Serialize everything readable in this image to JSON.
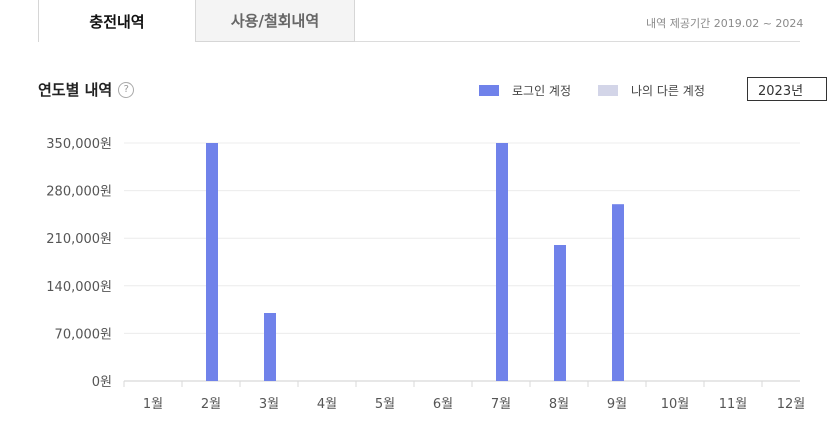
{
  "tabs": [
    {
      "label": "충전내역",
      "active": true
    },
    {
      "label": "사용/철회내역",
      "active": false
    }
  ],
  "period_text": "내역 제공기간 2019.02 ~ 2024",
  "section": {
    "title": "연도별 내역",
    "help_icon": "question-circle-icon"
  },
  "legend": [
    {
      "label": "로그인 계정",
      "color": "#7082ea"
    },
    {
      "label": "나의 다른 계정",
      "color": "#d3d5e8"
    }
  ],
  "year_select": {
    "value": "2023년"
  },
  "chart_data": {
    "type": "bar",
    "categories": [
      "1월",
      "2월",
      "3월",
      "4월",
      "5월",
      "6월",
      "7월",
      "8월",
      "9월",
      "10월",
      "11월",
      "12월"
    ],
    "series": [
      {
        "name": "로그인 계정",
        "values": [
          0,
          350000,
          100000,
          0,
          0,
          0,
          350000,
          200000,
          260000,
          0,
          0,
          0
        ]
      }
    ],
    "ylim": [
      0,
      350000
    ],
    "yticks": [
      0,
      70000,
      140000,
      210000,
      280000,
      350000
    ],
    "ytick_labels": [
      "0원",
      "70,000원",
      "140,000원",
      "210,000원",
      "280,000원",
      "350,000원"
    ],
    "grid": true
  }
}
